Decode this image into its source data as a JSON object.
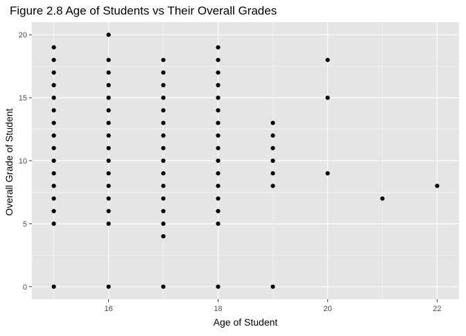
{
  "chart_data": {
    "type": "scatter",
    "title": "Figure 2.8 Age of Students vs Their Overall Grades",
    "xlabel": "Age of Student",
    "ylabel": "Overall Grade of Student",
    "xlim": [
      14.6,
      22.4
    ],
    "ylim": [
      -1,
      21
    ],
    "x_ticks": [
      16,
      18,
      20,
      22
    ],
    "x_tick_labels": [
      "16",
      "18",
      "20",
      "22"
    ],
    "y_ticks": [
      0,
      5,
      10,
      15,
      20
    ],
    "y_tick_labels": [
      "0",
      "5",
      "10",
      "15",
      "20"
    ],
    "grid": true,
    "legend": "none",
    "colors": {
      "panel_background": "#e5e5e5",
      "grid_major": "#ffffff",
      "point": "#000000",
      "axis_text": "#4d4d4d",
      "title_text": "#000000"
    },
    "points": [
      {
        "x": 15,
        "y": 0
      },
      {
        "x": 15,
        "y": 5
      },
      {
        "x": 15,
        "y": 6
      },
      {
        "x": 15,
        "y": 7
      },
      {
        "x": 15,
        "y": 8
      },
      {
        "x": 15,
        "y": 9
      },
      {
        "x": 15,
        "y": 10
      },
      {
        "x": 15,
        "y": 11
      },
      {
        "x": 15,
        "y": 12
      },
      {
        "x": 15,
        "y": 13
      },
      {
        "x": 15,
        "y": 14
      },
      {
        "x": 15,
        "y": 15
      },
      {
        "x": 15,
        "y": 16
      },
      {
        "x": 15,
        "y": 17
      },
      {
        "x": 15,
        "y": 18
      },
      {
        "x": 15,
        "y": 19
      },
      {
        "x": 16,
        "y": 0
      },
      {
        "x": 16,
        "y": 5
      },
      {
        "x": 16,
        "y": 6
      },
      {
        "x": 16,
        "y": 7
      },
      {
        "x": 16,
        "y": 8
      },
      {
        "x": 16,
        "y": 9
      },
      {
        "x": 16,
        "y": 10
      },
      {
        "x": 16,
        "y": 11
      },
      {
        "x": 16,
        "y": 12
      },
      {
        "x": 16,
        "y": 13
      },
      {
        "x": 16,
        "y": 14
      },
      {
        "x": 16,
        "y": 15
      },
      {
        "x": 16,
        "y": 16
      },
      {
        "x": 16,
        "y": 17
      },
      {
        "x": 16,
        "y": 18
      },
      {
        "x": 16,
        "y": 20
      },
      {
        "x": 17,
        "y": 0
      },
      {
        "x": 17,
        "y": 4
      },
      {
        "x": 17,
        "y": 5
      },
      {
        "x": 17,
        "y": 6
      },
      {
        "x": 17,
        "y": 7
      },
      {
        "x": 17,
        "y": 8
      },
      {
        "x": 17,
        "y": 9
      },
      {
        "x": 17,
        "y": 10
      },
      {
        "x": 17,
        "y": 11
      },
      {
        "x": 17,
        "y": 12
      },
      {
        "x": 17,
        "y": 13
      },
      {
        "x": 17,
        "y": 14
      },
      {
        "x": 17,
        "y": 15
      },
      {
        "x": 17,
        "y": 16
      },
      {
        "x": 17,
        "y": 17
      },
      {
        "x": 17,
        "y": 18
      },
      {
        "x": 18,
        "y": 0
      },
      {
        "x": 18,
        "y": 5
      },
      {
        "x": 18,
        "y": 6
      },
      {
        "x": 18,
        "y": 7
      },
      {
        "x": 18,
        "y": 8
      },
      {
        "x": 18,
        "y": 9
      },
      {
        "x": 18,
        "y": 10
      },
      {
        "x": 18,
        "y": 11
      },
      {
        "x": 18,
        "y": 12
      },
      {
        "x": 18,
        "y": 13
      },
      {
        "x": 18,
        "y": 14
      },
      {
        "x": 18,
        "y": 15
      },
      {
        "x": 18,
        "y": 16
      },
      {
        "x": 18,
        "y": 17
      },
      {
        "x": 18,
        "y": 18
      },
      {
        "x": 18,
        "y": 19
      },
      {
        "x": 19,
        "y": 0
      },
      {
        "x": 19,
        "y": 8
      },
      {
        "x": 19,
        "y": 9
      },
      {
        "x": 19,
        "y": 10
      },
      {
        "x": 19,
        "y": 11
      },
      {
        "x": 19,
        "y": 12
      },
      {
        "x": 19,
        "y": 13
      },
      {
        "x": 20,
        "y": 9
      },
      {
        "x": 20,
        "y": 15
      },
      {
        "x": 20,
        "y": 18
      },
      {
        "x": 21,
        "y": 7
      },
      {
        "x": 22,
        "y": 8
      }
    ]
  }
}
